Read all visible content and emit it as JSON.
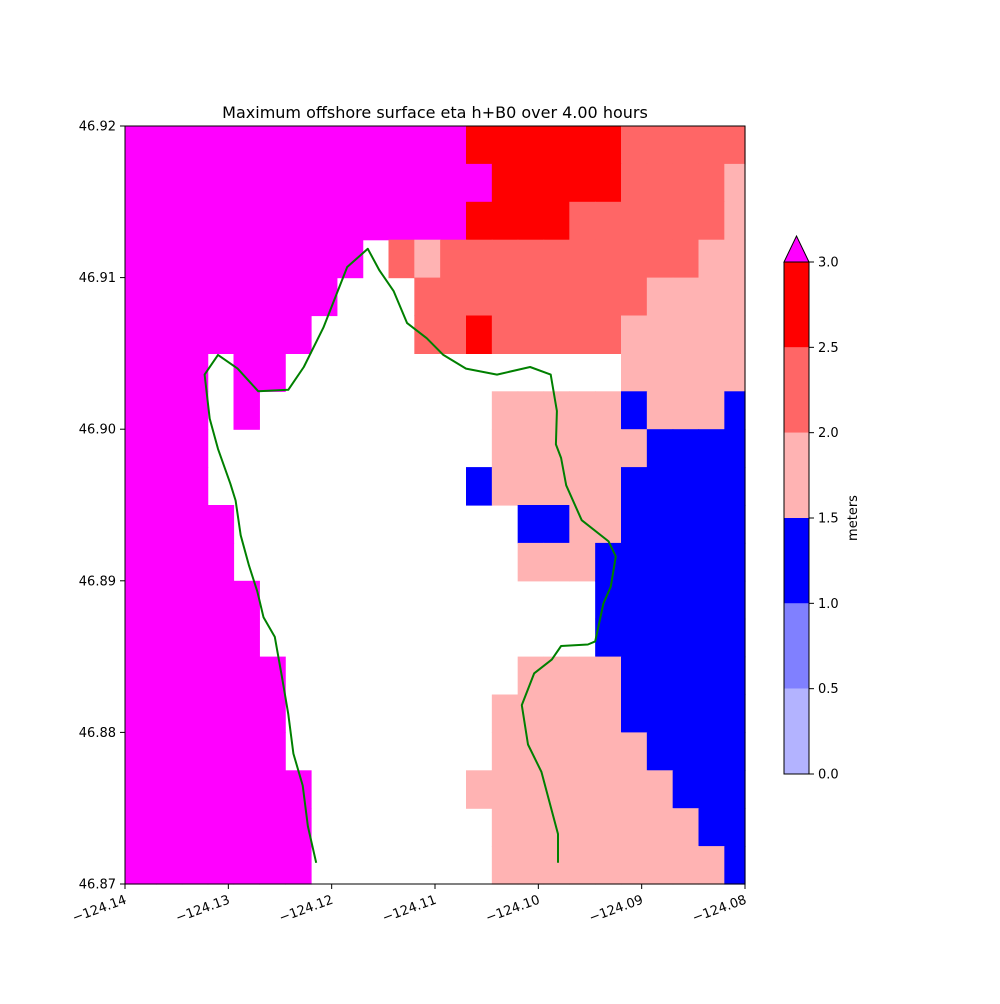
{
  "chart_data": {
    "type": "heatmap",
    "title": "Maximum offshore surface eta h+B0 over 4.00 hours",
    "xlim": [
      -124.14,
      -124.08
    ],
    "ylim": [
      46.87,
      46.92
    ],
    "x_ticks": [
      {
        "value": -124.14,
        "label": "−124.14"
      },
      {
        "value": -124.13,
        "label": "−124.13"
      },
      {
        "value": -124.12,
        "label": "−124.12"
      },
      {
        "value": -124.11,
        "label": "−124.11"
      },
      {
        "value": -124.1,
        "label": "−124.10"
      },
      {
        "value": -124.09,
        "label": "−124.09"
      },
      {
        "value": -124.08,
        "label": "−124.08"
      }
    ],
    "y_ticks": [
      {
        "value": 46.87,
        "label": "46.87"
      },
      {
        "value": 46.88,
        "label": "46.88"
      },
      {
        "value": 46.89,
        "label": "46.89"
      },
      {
        "value": 46.9,
        "label": "46.90"
      },
      {
        "value": 46.91,
        "label": "46.91"
      },
      {
        "value": 46.92,
        "label": "46.92"
      }
    ],
    "grid": false,
    "colorbar": {
      "label": "meters",
      "extend": "max",
      "over_color": "#ff00ff",
      "ticks": [
        {
          "value": 0.0,
          "label": "0.0"
        },
        {
          "value": 0.5,
          "label": "0.5"
        },
        {
          "value": 1.0,
          "label": "1.0"
        },
        {
          "value": 1.5,
          "label": "1.5"
        },
        {
          "value": 2.0,
          "label": "2.0"
        },
        {
          "value": 2.5,
          "label": "2.5"
        },
        {
          "value": 3.0,
          "label": "3.0"
        }
      ],
      "levels": [
        {
          "from": 0.0,
          "to": 0.5,
          "color": "#b3b3ff"
        },
        {
          "from": 0.5,
          "to": 1.0,
          "color": "#8080ff"
        },
        {
          "from": 1.0,
          "to": 1.5,
          "color": "#0000ff"
        },
        {
          "from": 1.5,
          "to": 2.0,
          "color": "#ffb3b3"
        },
        {
          "from": 2.0,
          "to": 2.5,
          "color": "#ff6666"
        },
        {
          "from": 2.5,
          "to": 3.0,
          "color": "#ff0000"
        }
      ]
    },
    "grid_x": [
      -124.14,
      -124.137,
      -124.1345,
      -124.132,
      -124.1295,
      -124.127,
      -124.1245,
      -124.122,
      -124.1195,
      -124.117,
      -124.1145,
      -124.112,
      -124.1095,
      -124.107,
      -124.1045,
      -124.102,
      -124.0995,
      -124.097,
      -124.0945,
      -124.092,
      -124.0895,
      -124.087,
      -124.0845,
      -124.082,
      -124.08
    ],
    "grid_y": [
      46.92,
      46.9175,
      46.915,
      46.9125,
      46.91,
      46.9075,
      46.905,
      46.9025,
      46.9,
      46.8975,
      46.895,
      46.8925,
      46.89,
      46.8875,
      46.885,
      46.8825,
      46.88,
      46.8775,
      46.875,
      46.8725,
      46.87
    ],
    "class_legend": {
      "M": "above 3.0",
      "R": "2.5-3.0",
      "S": "2.0-2.5",
      "P": "1.5-2.0",
      "B": "1.0-1.5",
      ".": "land / no data"
    },
    "cells": [
      "MMMMMMMMMMMMMRRRRRRSSSSS",
      "MMMMMMMMMMMMMMRRRRRSSSSP",
      "MMMMMMMMMMMMMRRRRSSSSSSP",
      "MMMMMMMMM.SPSSSSSSSSSSPP",
      "MMMMMMMM...SSSSSSSSSPPPP",
      "MMMMMMM....SSRSSSSSPPPPP",
      "MMM.MM.............PPPPP",
      "MMM.M.........PPPPPBPPPB",
      "MMM...........PPPPPPBBBB",
      "MMM..........BPPPPPBBBBB",
      "MMMM...........BBPPBBBBB",
      "MMMM...........PPPBBBBBB",
      "MMMMM.............BBBBBB",
      "MMMMM.............BBBBBB",
      "MMMMMM.........PPPPBBBBB",
      "MMMMMM........PPPPPBBBBB",
      "MMMMMM........PPPPPPBBBB",
      "MMMMMMM......PPPPPPPPBBB",
      "MMMMMMM.......PPPPPPPPBB",
      "MMMMMMM.......PPPPPPPPPB"
    ],
    "shoreline": [
      [
        -124.1215,
        46.8714
      ],
      [
        -124.1223,
        46.8738
      ],
      [
        -124.1228,
        46.8765
      ],
      [
        -124.1237,
        46.8786
      ],
      [
        -124.1242,
        46.8812
      ],
      [
        -124.1248,
        46.8836
      ],
      [
        -124.1255,
        46.8863
      ],
      [
        -124.1266,
        46.8876
      ],
      [
        -124.1272,
        46.8893
      ],
      [
        -124.128,
        46.891
      ],
      [
        -124.1288,
        46.893
      ],
      [
        -124.1293,
        46.8953
      ],
      [
        -124.1298,
        46.8964
      ],
      [
        -124.131,
        46.8987
      ],
      [
        -124.1318,
        46.9007
      ],
      [
        -124.1323,
        46.9036
      ],
      [
        -124.131,
        46.9049
      ],
      [
        -124.1291,
        46.904
      ],
      [
        -124.1271,
        46.9025
      ],
      [
        -124.1242,
        46.9026
      ],
      [
        -124.1227,
        46.9041
      ],
      [
        -124.1208,
        46.9067
      ],
      [
        -124.1185,
        46.9107
      ],
      [
        -124.1165,
        46.9119
      ],
      [
        -124.1154,
        46.9105
      ],
      [
        -124.114,
        46.9091
      ],
      [
        -124.1127,
        46.907
      ],
      [
        -124.1108,
        46.906
      ],
      [
        -124.1092,
        46.9049
      ],
      [
        -124.107,
        46.904
      ],
      [
        -124.104,
        46.9036
      ],
      [
        -124.1008,
        46.9041
      ],
      [
        -124.0988,
        46.9036
      ],
      [
        -124.0982,
        46.9012
      ],
      [
        -124.0983,
        46.899
      ],
      [
        -124.0978,
        46.8981
      ],
      [
        -124.0973,
        46.8963
      ],
      [
        -124.0958,
        46.894
      ],
      [
        -124.0932,
        46.8926
      ],
      [
        -124.0925,
        46.8916
      ],
      [
        -124.093,
        46.8896
      ],
      [
        -124.0937,
        46.8885
      ],
      [
        -124.0945,
        46.886
      ],
      [
        -124.0952,
        46.8858
      ],
      [
        -124.0978,
        46.8857
      ],
      [
        -124.0987,
        46.8848
      ],
      [
        -124.1004,
        46.8839
      ],
      [
        -124.1016,
        46.8818
      ],
      [
        -124.101,
        46.8792
      ],
      [
        -124.0997,
        46.8774
      ],
      [
        -124.0981,
        46.8733
      ],
      [
        -124.0981,
        46.8714
      ]
    ],
    "shoreline_color": "#008000",
    "palette": {
      "M": "#ff00ff",
      "R": "#ff0000",
      "S": "#ff6666",
      "P": "#ffb3b3",
      "B": "#0000ff"
    }
  }
}
